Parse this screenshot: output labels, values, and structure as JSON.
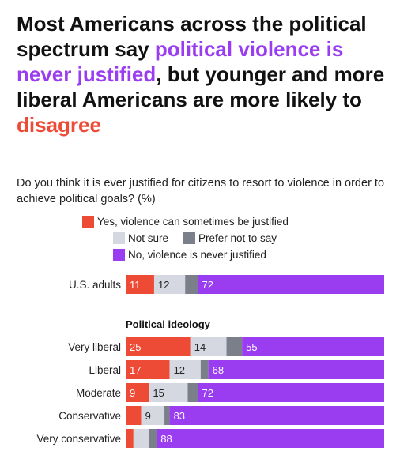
{
  "title": {
    "part1": "Most Americans across the political spectrum say ",
    "highlight1": "political violence is never justified",
    "part2": ", but younger and more liberal Americans are more likely to ",
    "highlight2": "disagree"
  },
  "subtitle": "Do you think it is ever justified for citizens to resort to violence in order to achieve political goals? (%)",
  "colors": {
    "yes": "#ee4b37",
    "not_sure": "#d5d8e0",
    "prefer_not": "#7b7f89",
    "no": "#9a3df0"
  },
  "chart_data": {
    "type": "bar",
    "orientation": "horizontal",
    "stacked": true,
    "legend": [
      {
        "key": "yes",
        "label": "Yes, violence can sometimes be justified"
      },
      {
        "key": "not_sure",
        "label": "Not sure"
      },
      {
        "key": "prefer_not",
        "label": "Prefer not to say"
      },
      {
        "key": "no",
        "label": "No, violence is never justified"
      }
    ],
    "groups": [
      {
        "heading": "",
        "rows": [
          {
            "label": "U.S. adults",
            "yes": 11,
            "not_sure": 12,
            "prefer_not": 5,
            "no": 72,
            "labels": {
              "yes": "11",
              "not_sure": "12",
              "prefer_not": "",
              "no": "72"
            }
          }
        ]
      },
      {
        "heading": "Political ideology",
        "rows": [
          {
            "label": "Very liberal",
            "yes": 25,
            "not_sure": 14,
            "prefer_not": 6,
            "no": 55,
            "labels": {
              "yes": "25",
              "not_sure": "14",
              "prefer_not": "",
              "no": "55"
            }
          },
          {
            "label": "Liberal",
            "yes": 17,
            "not_sure": 12,
            "prefer_not": 3,
            "no": 68,
            "labels": {
              "yes": "17",
              "not_sure": "12",
              "prefer_not": "",
              "no": "68"
            }
          },
          {
            "label": "Moderate",
            "yes": 9,
            "not_sure": 15,
            "prefer_not": 4,
            "no": 72,
            "labels": {
              "yes": "9",
              "not_sure": "15",
              "prefer_not": "",
              "no": "72"
            }
          },
          {
            "label": "Conservative",
            "yes": 6,
            "not_sure": 9,
            "prefer_not": 2,
            "no": 83,
            "labels": {
              "yes": "",
              "not_sure": "9",
              "prefer_not": "",
              "no": "83"
            }
          },
          {
            "label": "Very conservative",
            "yes": 3,
            "not_sure": 6,
            "prefer_not": 3,
            "no": 88,
            "labels": {
              "yes": "",
              "not_sure": "",
              "prefer_not": "",
              "no": "88"
            }
          }
        ]
      }
    ]
  }
}
